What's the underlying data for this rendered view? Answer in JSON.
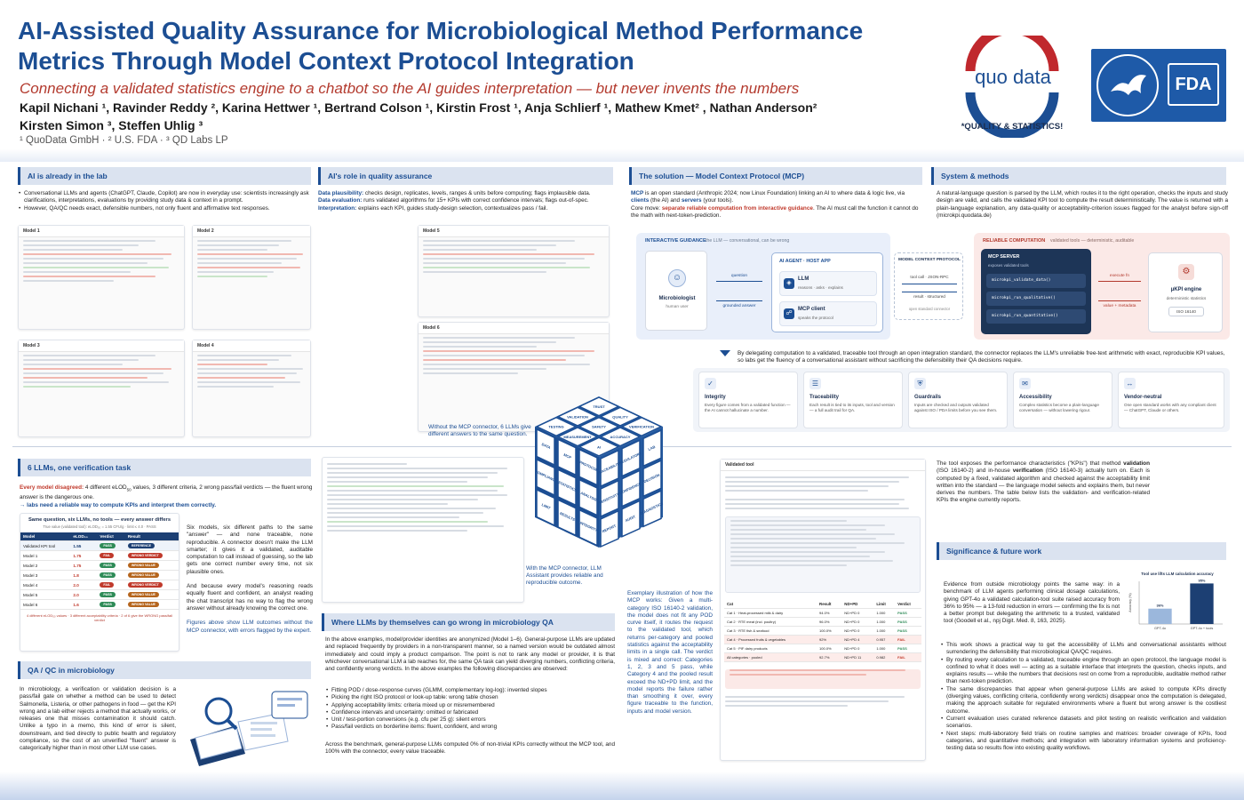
{
  "header": {
    "title_line1": "AI-Assisted Quality Assurance for Microbiological Method Performance",
    "title_line2": "Metrics Through Model Context Protocol Integration",
    "subtitle": "Connecting a validated statistics engine to a chatbot so the AI guides interpretation — but never invents the numbers",
    "authors_line1": "Kapil Nichani ¹, Ravinder Reddy ², Karina Hettwer ¹, Bertrand Colson ¹, Kirstin Frost ¹, Anja Schlierf ¹, Mathew Kmet² , Nathan Anderson²",
    "authors_line2": "Kirsten Simon ³, Steffen Uhlig ³",
    "affiliations": "¹ QuoData GmbH ·   ² U.S. FDA   ·   ³ QD Labs LP"
  },
  "logos": {
    "quodata_text": "quo data",
    "quodata_tagline": "*QUALITY & STATISTICS!",
    "fda_text": "FDA"
  },
  "s1": {
    "heading": "AI is already in the lab",
    "b1": "Conversational LLMs and agents (ChatGPT, Claude, Copilot) are now in everyday use: scientists increasingly ask clarifications, interpretations, evaluations by providing study data & context in a prompt.",
    "b2": "However, QA/QC needs exact, defensible numbers, not only fluent and affirmative text responses.",
    "cards": [
      "Model 1",
      "Model 2",
      "Model 3",
      "Model 4"
    ]
  },
  "s2": {
    "heading": "AI's role in quality assurance",
    "p1_label": "Data plausibility:",
    "p1": " checks design, replicates, levels, ranges & units before computing; flags implausible data.",
    "p2_label": "Data evaluation:",
    "p2": " runs validated algorithms for 15+ KPIs with correct confidence intervals; flags out-of-spec.",
    "p3_label": "Interpretation:",
    "p3": " explains each KPI, guides study-design selection, contextualizes pass / fail.",
    "cards": [
      "Model 5",
      "Model 6"
    ]
  },
  "s3": {
    "heading": "The solution — Model Context Protocol (MCP)",
    "p1_a": "MCP",
    "p1_b": " is an open standard (Anthropic 2024; now Linux Foundation) linking an AI to where data & logic live, via ",
    "p1_c": "clients",
    "p1_d": " (the AI) and ",
    "p1_e": "servers",
    "p1_f": " (your tools).",
    "p2_a": "Core move: ",
    "p2_b": "separate reliable computation from interactive guidance",
    "p2_c": ". The AI must call the function it cannot do the math with next-token-prediction."
  },
  "s4": {
    "heading": "System & methods",
    "text": "A natural-language question is parsed by the LLM, which routes it to the right operation, checks the inputs and study design are valid, and calls the validated KPI tool to compute the result deterministically. The value is returned with a plain-language explanation, any data-quality or acceptability-criterion issues flagged for the analyst before sign-off (microkpi.quodata.de)"
  },
  "diagram": {
    "guidance_title": "INTERACTIVE GUIDANCE",
    "guidance_sub": "the LLM — conversational, can be wrong",
    "microbiologist": "Microbiologist",
    "human_user": "human user",
    "question": "question",
    "grounded": "grounded answer",
    "agent": "AI AGENT · HOST APP",
    "llm": "LLM",
    "llm_sub": "reasons · asks · explains",
    "client": "MCP client",
    "client_sub": "speaks the protocol",
    "protocol_title": "MODEL CONTEXT PROTOCOL",
    "tool_call": "tool call · JSON-RPC",
    "result": "result · structured",
    "open_std": "open standard connector",
    "reliable_title": "RELIABLE COMPUTATION",
    "reliable_sub": "validated tools — deterministic, auditable",
    "server": "MCP SERVER",
    "server_sub": "exposes validated tools",
    "tool1": "microkpi_validate_data()",
    "tool2": "microkpi_run_qualitative()",
    "tool3": "microkpi_run_quantitative()",
    "execute": "execute fn",
    "value_meta": "value + metadata",
    "engine": "µKPI engine",
    "engine_sub": "deterministic statistics",
    "iso": "ISO 16140",
    "caption": "By delegating computation to a validated, traceable tool through an open integration standard, the connector replaces the LLM's unreliable free-text arithmetic with exact, reproducible KPI values, so labs get the fluency of a conversational assistant without sacrificing the defensibility their QA decisions require."
  },
  "kpis": [
    {
      "title": "Integrity",
      "desc": "Every figure comes from a validated function — the AI cannot hallucinate a number.",
      "icon": "✓"
    },
    {
      "title": "Traceability",
      "desc": "Each result is tied to its inputs, tool and version — a full audit trail for QA.",
      "icon": "☰"
    },
    {
      "title": "Guardrails",
      "desc": "Inputs are checked and outputs validated against ISO / PDA limits before you see them.",
      "icon": "⛨"
    },
    {
      "title": "Accessibility",
      "desc": "Complex statistics become a plain-language conversation — without lowering rigour.",
      "icon": "✉"
    },
    {
      "title": "Vendor-neutral",
      "desc": "One open standard works with any compliant client — ChatGPT, Claude or others.",
      "icon": "↔"
    }
  ],
  "s5": {
    "heading": "6 LLMs, one verification task",
    "p1_a": "Every model disagreed:",
    "p1_b": " 4 different eLOD",
    "p1_sub": "50",
    "p1_c": " values, 3 different criteria, 2 wrong pass/fail verdicts — the fluent wrong answer is the dangerous one.",
    "p2": "→ labs need a reliable way to compute KPIs and interpret them correctly.",
    "fig_title": "Same question, six LLMs, no tools — every answer differs",
    "fig_sub": "True value (validated tool): eLOD₅₀ = 1.55 CFU/g  ·  limit ≤ 4.0  ·  PASS",
    "col_model": "Model",
    "col_elod": "eLOD₅₀",
    "col_verdict": "Verdict",
    "col_result": "Result",
    "rows": [
      {
        "model": "Validated KPI tool",
        "elod": "1.55",
        "verdict": "PASS",
        "result": "REFERENCE"
      },
      {
        "model": "Model 1",
        "elod": "1.75",
        "verdict": "FAIL",
        "result": "WRONG VERDICT"
      },
      {
        "model": "Model 2",
        "elod": "1.75",
        "verdict": "PASS",
        "result": "WRONG VALUE"
      },
      {
        "model": "Model 3",
        "elod": "1.8",
        "verdict": "PASS",
        "result": "WRONG VALUE"
      },
      {
        "model": "Model 4",
        "elod": "2.0",
        "verdict": "FAIL",
        "result": "WRONG VERDICT"
      },
      {
        "model": "Model 5",
        "elod": "2.0",
        "verdict": "PASS",
        "result": "WRONG VALUE"
      },
      {
        "model": "Model 6",
        "elod": "1.6",
        "verdict": "PASS",
        "result": "WRONG VALUE"
      }
    ],
    "fig_note": "4 different eLOD₅₀ values · 3 different acceptability criteria · 2 of 6 give the WRONG pass/fail verdict",
    "side1": "Six models, six different paths to the same \"answer\" — and none traceable, none reproducible. A connector doesn't make the LLM smarter; it gives it a validated, auditable computation to call instead of guessing, so the lab gets one correct number every time, not six plausible ones.",
    "side2": "And because every model's reasoning reads equally fluent and confident, an analyst reading the chat transcript has no way to flag the wrong answer without already knowing the correct one.",
    "side3": "Figures above show LLM outcomes without the MCP connector, with errors flagged by the expert."
  },
  "s6": {
    "heading": "QA / QC in microbiology",
    "text": "In microbiology, a verification or validation decision is a pass/fail gate on whether a method can be used to detect Salmonella, Listeria, or other pathogens in food — get the KPI wrong and a lab either rejects a method that actually works, or releases one that misses contamination it should catch. Unlike a typo in a memo, this kind of error is silent, downstream, and tied directly to public health and regulatory compliance, so the cost of an unverified \"fluent\" answer is categorically higher than in most other LLM use cases."
  },
  "s7": {
    "heading": "Where LLMs by themselves can go wrong in microbiology QA",
    "intro": "In the above examples, model/provider identities are anonymized (Model 1–6). General-purpose LLMs are updated and replaced frequently by providers in a non-transparent manner, so a named version would be outdated almost immediately and could imply a product comparison. The point is not to rank any model or provider, it is that whichever conversational LLM a lab reaches for, the same QA task can yield diverging numbers, conflicting criteria, and confidently wrong verdicts. In the above examples the following discrepancies are observed:",
    "items": [
      "Fitting POD / dose-response curves (GLMM, complementary log-log): invented slopes",
      "Picking the right ISO protocol or look-up table: wrong table chosen",
      "Applying acceptability limits: criteria mixed up or misremembered",
      "Confidence intervals and uncertainty: omitted or fabricated",
      "Unit / test-portion conversions (e.g. cfu per 25 g): silent errors",
      "Pass/fail verdicts on borderline items: fluent, confident, and wrong"
    ],
    "outro": "Across the benchmark, general-purpose LLMs computed 0% of non-trivial KPIs correctly without the MCP tool, and 100% with the connector, every value traceable."
  },
  "cube": {
    "faces": [
      "TRUST",
      "QUALITY",
      "VERIFICATION",
      "VALIDATION",
      "SAFETY",
      "ACCURACY",
      "TESTING",
      "MEASUREMENT",
      "AI",
      "DATA",
      "MCP",
      "PROTOCOL",
      "COMPLIANCE",
      "STATISTICS",
      "ANALYSIS",
      "LIMIT",
      "RESULTS",
      "INTEGRITY",
      "TRACEABILITY",
      "REGULATORY",
      "LAB",
      "SENSITIVITY",
      "CONFIDENCE",
      "DECISION",
      "REPORT",
      "AUDIT",
      "DIAGNOSTICS"
    ],
    "cap1": "Without the MCP connector, 6 LLMs give different answers to the same question.",
    "cap2": "With the MCP connector, LLM Assistant provides reliable and reproducible outcome.",
    "cap3": "Exemplary illustration of how the MCP works: Given a multi-category ISO 16140-2 validation, the model does not fit any POD curve itself, it routes the request to the validated tool, which returns per-category and pooled statistics against the acceptability limits in a single call. The verdict is mixed and correct: Categories 1, 2, 3 and 5 pass, while Category 4 and the pooled result exceed the ND+PD limit, and the model reports the failure rather than smoothing it over, every figure traceable to the function, inputs and model version."
  },
  "s8": {
    "text_a": "The tool exposes the performance characteristics (\"KPIs\") that method ",
    "text_b": "validation",
    "text_c": " (ISO 16140-2) and in-house ",
    "text_d": "verification",
    "text_e": " (ISO 16140-3) actually turn on. Each is computed by a fixed, validated algorithm and checked against the acceptability limit written into the standard — the language model selects and explains them, but never derives the numbers. The table below lists the validation- and verification-related KPIs the engine currently reports."
  },
  "s9": {
    "heading": "Significance & future work",
    "evidence": "Evidence from outside microbiology points the same way: in a benchmark of LLM agents performing clinical dosage calculations, giving GPT-4o a validated calculation-tool suite raised accuracy from 36% to 95% — a 13-fold reduction in errors — confirming the fix is not a better prompt but delegating the arithmetic to a trusted, validated tool (Goodell et al., npj Digit. Med. 8, 163, 2025).",
    "items": [
      "This work shows a practical way to get the accessibility of LLMs and conversational assistants without surrendering the defensibility that microbiological QA/QC requires.",
      "By routing every calculation to a validated, traceable engine through an open protocol, the language model is confined to what it does well — acting as a suitable interface that interprets the question, checks inputs, and explains results — while the numbers that decisions rest on come from a reproducible, auditable method rather than next-token prediction.",
      "The same discrepancies that appear when general-purpose LLMs are asked to compute KPIs directly (diverging values, conflicting criteria, confidently wrong verdicts) disappear once the computation is delegated, making the approach suitable for regulated environments where a fluent but wrong answer is the costliest outcome.",
      "Current evaluation uses curated reference datasets and pilot testing on realistic verification and validation scenarios.",
      "Next steps: multi-laboratory field trials on routine samples and matrices: broader coverage of KPIs, food categories, and quantitative methods; and integration with laboratory information systems and proficiency-testing data so results flow into existing quality workflows."
    ]
  },
  "chart_data": {
    "type": "bar",
    "title": "Tool use lifts LLM calculation accuracy",
    "categories": [
      "GPT-4o",
      "GPT-4o + tools"
    ],
    "values": [
      36,
      95
    ],
    "ylabel": "Accuracy (%)",
    "ylim": [
      0,
      100
    ],
    "value_labels": [
      "36%",
      "95%"
    ],
    "colors": [
      "#9bb7dc",
      "#1c3f73"
    ]
  },
  "validated_tool_card": {
    "title": "Validated tool",
    "cols": [
      "Cat",
      "Result",
      "ND+PD",
      "Limit",
      "Verdict"
    ],
    "rows": [
      {
        "cat": "Cat 1 · Heat-processed milk & dairy",
        "a": "94.0%",
        "b": "ND+PD 0",
        "c": "1.000",
        "d": "PASS"
      },
      {
        "cat": "Cat 2 · RTE meat (incl. poultry)",
        "a": "96.0%",
        "b": "ND+PD 0",
        "c": "1.000",
        "d": "PASS"
      },
      {
        "cat": "Cat 3 · RTE fish & seafood",
        "a": "100.0%",
        "b": "ND+PD 0",
        "c": "1.000",
        "d": "PASS"
      },
      {
        "cat": "Cat 4 · Processed fruits & vegetables",
        "a": "92%",
        "b": "ND+PD 4",
        "c": "0.957",
        "d": "FAIL"
      },
      {
        "cat": "Cat 5 · PIF dairy products",
        "a": "100.0%",
        "b": "ND+PD 0",
        "c": "1.000",
        "d": "PASS"
      },
      {
        "cat": "All categories · pooled",
        "a": "92.7%",
        "b": "ND+PD 11",
        "c": "0.982",
        "d": "FAIL"
      }
    ]
  }
}
